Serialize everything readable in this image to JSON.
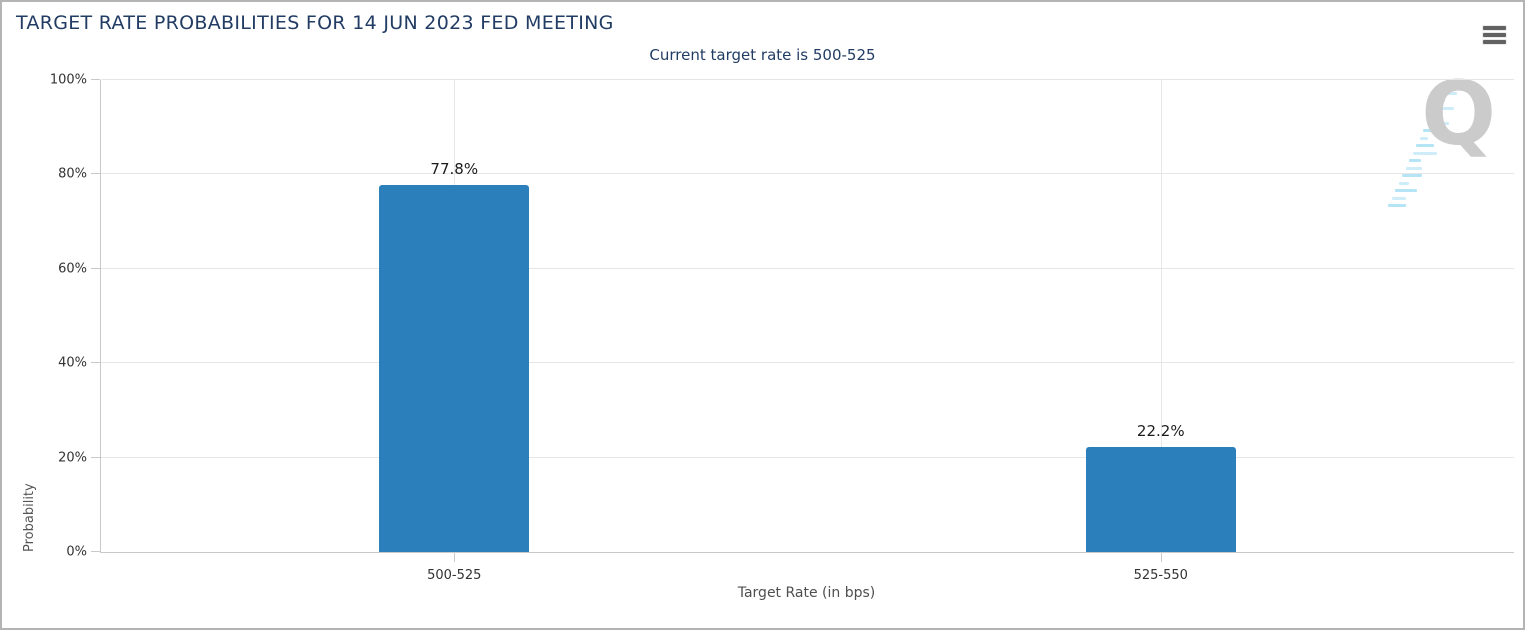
{
  "header": {
    "title": "TARGET RATE PROBABILITIES FOR 14 JUN 2023 FED MEETING",
    "subtitle": "Current target rate is 500-525"
  },
  "chart_data": {
    "type": "bar",
    "title": "TARGET RATE PROBABILITIES FOR 14 JUN 2023 FED MEETING",
    "subtitle": "Current target rate is 500-525",
    "categories": [
      "500-525",
      "525-550"
    ],
    "values": [
      77.8,
      22.2
    ],
    "value_labels": [
      "77.8%",
      "22.2%"
    ],
    "xlabel": "Target Rate (in bps)",
    "ylabel": "Probability",
    "ylim": [
      0,
      100
    ],
    "yticks": [
      "0%",
      "20%",
      "40%",
      "60%",
      "80%",
      "100%"
    ],
    "grid": true,
    "legend": "none",
    "watermark": "Q"
  },
  "colors": {
    "title_text": "#223c64",
    "bar": "#2b80bc",
    "gridline": "#e6e6e6",
    "axis_line": "#c9c9c9",
    "tick_label": "#333333",
    "axis_title": "#4f4f4f",
    "menu_icon": "#626262",
    "watermark_q": "#cbcbcb",
    "watermark_swoosh": "#b4e4f6"
  }
}
